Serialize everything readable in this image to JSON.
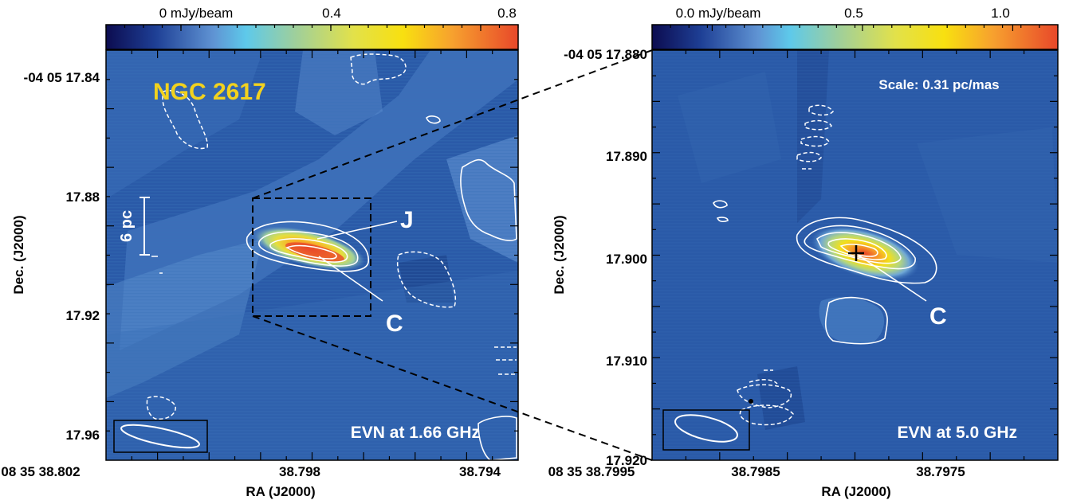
{
  "chart_data": [
    {
      "type": "heatmap",
      "subtitle": "NGC 2617",
      "annotation": "EVN at 1.66 GHz",
      "colorbar": {
        "ticks": [
          {
            "value": 0,
            "label": "0 mJy/beam"
          },
          {
            "value": 0.4,
            "label": "0.4"
          },
          {
            "value": 0.8,
            "label": "0.8"
          }
        ],
        "range": [
          -0.2,
          0.9
        ]
      },
      "xlabel": "RA (J2000)",
      "ylabel": "Dec. (J2000)",
      "xticks": [
        "08 35 38.802",
        "38.798",
        "38.794"
      ],
      "yticks": [
        "-04 05 17.84",
        "17.88",
        "17.92",
        "17.96"
      ],
      "xlim": [
        "38.8035",
        "38.7926"
      ],
      "ylim": [
        "17.83",
        "17.965"
      ],
      "scale_bar": "6 pc",
      "components": [
        {
          "name": "J"
        },
        {
          "name": "C"
        }
      ],
      "peak_mjy_per_beam": 0.8
    },
    {
      "type": "heatmap",
      "annotation": "EVN at 5.0 GHz",
      "scale_text": "Scale: 0.31 pc/mas",
      "colorbar": {
        "ticks": [
          {
            "value": 0.0,
            "label": "0.0 mJy/beam"
          },
          {
            "value": 0.5,
            "label": "0.5"
          },
          {
            "value": 1.0,
            "label": "1.0"
          }
        ],
        "range": [
          -0.2,
          1.15
        ]
      },
      "xlabel": "RA (J2000)",
      "ylabel": "Dec. (J2000)",
      "xticks": [
        "08 35 38.7995",
        "38.7985",
        "38.7975"
      ],
      "yticks": [
        "-04 05 17.880",
        "17.890",
        "17.900",
        "17.910",
        "17.920"
      ],
      "xlim": [
        "38.7995",
        "38.7966"
      ],
      "ylim": [
        "17.88",
        "17.92"
      ],
      "components": [
        {
          "name": "C"
        }
      ],
      "peak_mjy_per_beam": 1.1
    }
  ],
  "colors": {
    "background_map": "#2a5aa8",
    "title_text": "#f2d21e",
    "contour": "#ffffff"
  }
}
